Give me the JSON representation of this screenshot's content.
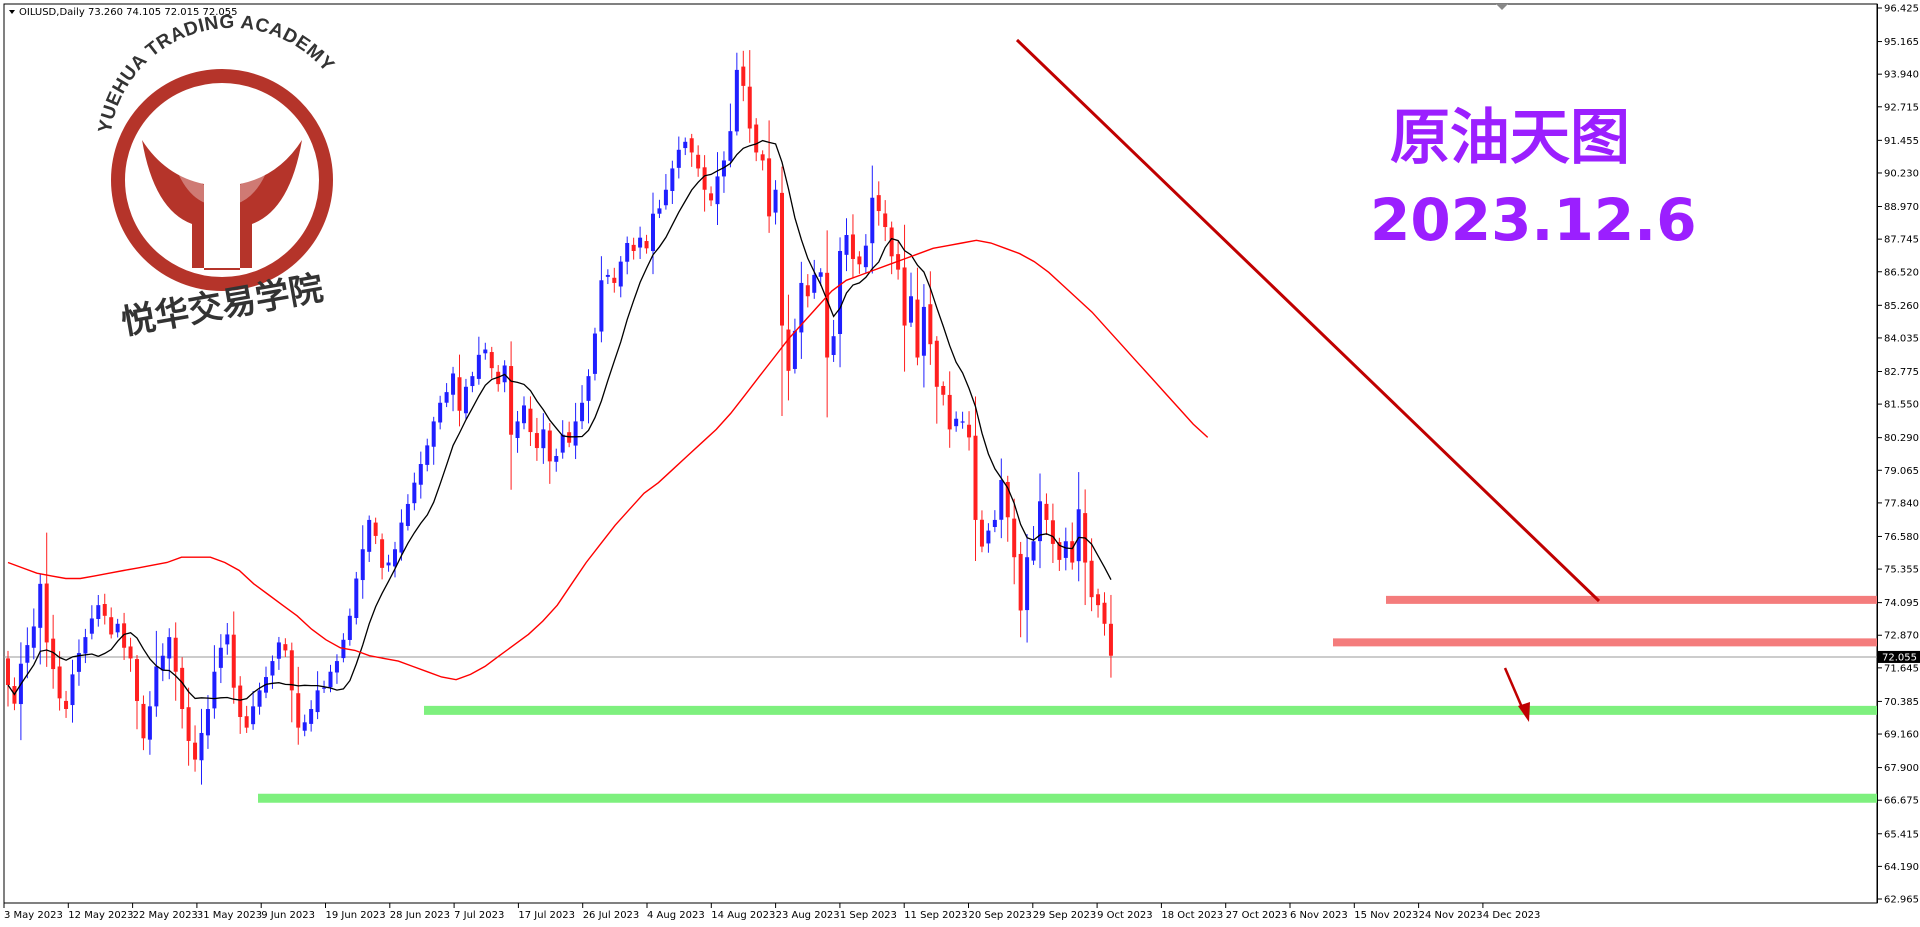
{
  "header": {
    "symbol": "OILUSD,Daily",
    "ohlc": "73.260 74.105 72.015 72.055"
  },
  "title_cn": "原油天图",
  "title_date": "2023.12.6",
  "logo": {
    "ring_text": "YUEHUA TRADING ACADEMY",
    "cn_text": "悦华交易学院",
    "color": "#b5342a"
  },
  "colors": {
    "bull": "#1f1fff",
    "bear": "#ff1f1f",
    "ma_fast": "#000000",
    "ma_slow": "#ff0000",
    "trendline": "#c00000",
    "resistance": "#f47c7c",
    "support": "#7ef07e",
    "title": "#9b1fff"
  },
  "chart_data": {
    "type": "candlestick",
    "symbol": "OILUSD",
    "timeframe": "Daily",
    "current_price": 72.055,
    "current_price_label": "72.055",
    "ylim": [
      62.965,
      96.425
    ],
    "y_ticks": [
      "96.425",
      "95.165",
      "93.940",
      "92.715",
      "91.455",
      "90.230",
      "88.970",
      "87.745",
      "86.520",
      "85.260",
      "84.035",
      "82.775",
      "81.550",
      "80.290",
      "79.065",
      "77.840",
      "76.580",
      "75.355",
      "74.095",
      "72.870",
      "71.645",
      "70.385",
      "69.160",
      "67.900",
      "66.675",
      "65.415",
      "64.190",
      "62.965"
    ],
    "x_ticks": [
      "3 May 2023",
      "12 May 2023",
      "22 May 2023",
      "31 May 2023",
      "9 Jun 2023",
      "19 Jun 2023",
      "28 Jun 2023",
      "7 Jul 2023",
      "17 Jul 2023",
      "26 Jul 2023",
      "4 Aug 2023",
      "14 Aug 2023",
      "23 Aug 2023",
      "1 Sep 2023",
      "11 Sep 2023",
      "20 Sep 2023",
      "29 Sep 2023",
      "9 Oct 2023",
      "18 Oct 2023",
      "27 Oct 2023",
      "6 Nov 2023",
      "15 Nov 2023",
      "24 Nov 2023",
      "4 Dec 2023"
    ],
    "closes": [
      71.0,
      70.3,
      71.8,
      72.5,
      73.2,
      74.8,
      72.6,
      71.6,
      70.5,
      70.1,
      71.4,
      72.2,
      72.8,
      73.5,
      74.0,
      73.6,
      72.9,
      73.3,
      72.4,
      72.0,
      70.4,
      69.0,
      70.2,
      71.7,
      72.1,
      72.8,
      71.5,
      70.1,
      68.9,
      68.2,
      69.2,
      70.1,
      71.5,
      72.4,
      72.9,
      70.9,
      69.8,
      69.4,
      70.2,
      70.8,
      71.3,
      71.9,
      72.6,
      72.3,
      70.8,
      69.4,
      69.6,
      70.1,
      70.8,
      70.9,
      71.5,
      71.9,
      72.7,
      73.6,
      75.0,
      76.1,
      77.2,
      76.6,
      75.4,
      75.6,
      76.1,
      77.1,
      77.8,
      78.6,
      79.3,
      80.0,
      80.9,
      81.6,
      82.0,
      82.7,
      81.3,
      82.2,
      82.6,
      83.4,
      83.6,
      82.9,
      82.3,
      83.0,
      80.4,
      80.9,
      81.5,
      80.5,
      79.9,
      80.6,
      79.4,
      79.6,
      80.4,
      80.1,
      80.9,
      81.6,
      82.6,
      84.2,
      86.2,
      86.4,
      86.1,
      86.9,
      87.6,
      87.3,
      87.8,
      87.4,
      88.7,
      88.9,
      89.6,
      90.4,
      91.1,
      91.4,
      91.0,
      90.4,
      89.6,
      89.2,
      90.1,
      90.7,
      91.8,
      94.1,
      93.5,
      91.9,
      91.0,
      90.7,
      88.6,
      89.6,
      84.5,
      82.8,
      84.3,
      86.1,
      85.6,
      86.4,
      86.5,
      83.3,
      84.1,
      87.3,
      87.9,
      87.0,
      86.8,
      87.5,
      89.3,
      88.8,
      88.2,
      87.1,
      86.6,
      84.5,
      85.6,
      83.3,
      85.2,
      83.8,
      82.2,
      81.9,
      80.6,
      81.0,
      80.9,
      80.3,
      77.2,
      76.2,
      76.8,
      77.2,
      78.7,
      77.3,
      75.8,
      73.8,
      75.8,
      76.4,
      77.9,
      77.2,
      76.3,
      75.7,
      76.4,
      75.6,
      77.6,
      75.6,
      74.3,
      74.0,
      73.3,
      72.1
    ]
  }
}
